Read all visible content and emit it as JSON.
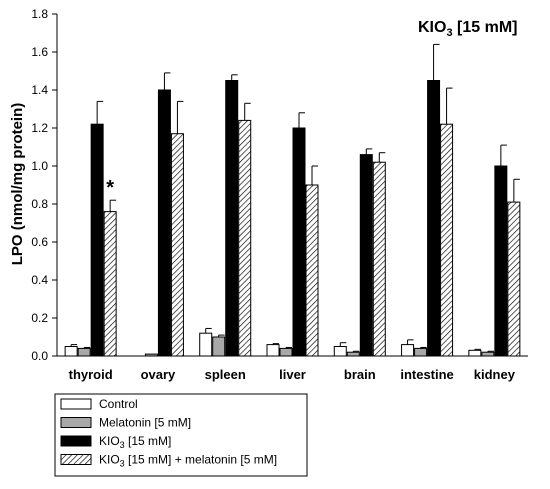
{
  "chart_data": {
    "type": "bar",
    "title": "",
    "annotation": {
      "base": "KIO",
      "sub": "3",
      "rest": " [15 mM]"
    },
    "significance_marker": {
      "text": "*",
      "category": "thyroid",
      "series_index": 3
    },
    "xlabel": "",
    "ylabel": "LPO (nmol/mg protein)",
    "ylim": [
      0,
      1.8
    ],
    "yticks": [
      0.0,
      0.2,
      0.4,
      0.6,
      0.8,
      1.0,
      1.2,
      1.4,
      1.6,
      1.8
    ],
    "categories": [
      "thyroid",
      "ovary",
      "spleen",
      "liver",
      "brain",
      "intestine",
      "kidney"
    ],
    "series": [
      {
        "legend": [
          {
            "t": "Control"
          }
        ],
        "fill": "#ffffff",
        "values": [
          0.05,
          0.0,
          0.12,
          0.06,
          0.05,
          0.06,
          0.03
        ],
        "errors": [
          0.01,
          0.0,
          0.025,
          0.005,
          0.02,
          0.025,
          0.005
        ]
      },
      {
        "legend": [
          {
            "t": "Melatonin [5 mM]"
          }
        ],
        "fill": "#a8a8a8",
        "values": [
          0.04,
          0.01,
          0.1,
          0.04,
          0.02,
          0.04,
          0.02
        ],
        "errors": [
          0.005,
          0.0,
          0.01,
          0.005,
          0.005,
          0.005,
          0.005
        ],
        "drop_zero_bar": [
          false,
          false,
          false,
          false,
          false,
          false,
          false
        ]
      },
      {
        "legend": [
          {
            "t": "KIO"
          },
          {
            "t": "3",
            "sub": true
          },
          {
            "t": " [15 mM]"
          }
        ],
        "fill": "#000000",
        "values": [
          1.22,
          1.4,
          1.45,
          1.2,
          1.06,
          1.45,
          1.0
        ],
        "errors": [
          0.12,
          0.09,
          0.03,
          0.08,
          0.03,
          0.19,
          0.11
        ]
      },
      {
        "legend": [
          {
            "t": "KIO"
          },
          {
            "t": "3",
            "sub": true
          },
          {
            "t": " [15 mM] + melatonin [5 mM]"
          }
        ],
        "fill": "hatch",
        "values": [
          0.76,
          1.17,
          1.24,
          0.9,
          1.02,
          1.22,
          0.81
        ],
        "errors": [
          0.06,
          0.17,
          0.09,
          0.1,
          0.05,
          0.19,
          0.12
        ]
      }
    ],
    "legend_position": "bottom-left",
    "grid": false
  }
}
